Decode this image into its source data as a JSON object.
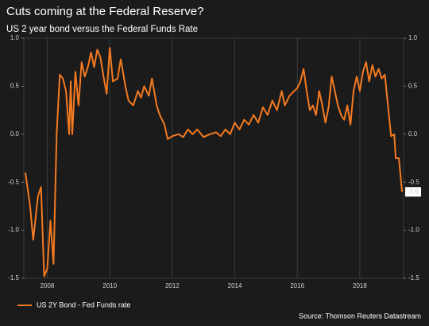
{
  "chart_data": {
    "type": "line",
    "title": "Cuts coming at the Federal Reserve?",
    "subtitle": "US 2 year bond versus the Federal Funds Rate",
    "source": "Source: Thomson Reuters Datastream",
    "xlim": [
      2007.25,
      2019.4
    ],
    "xticks": [
      2008,
      2010,
      2012,
      2014,
      2016,
      2018
    ],
    "ylim": [
      -1.5,
      1.0
    ],
    "yticks": [
      {
        "value": 1.0,
        "label": "1.0"
      },
      {
        "value": 0.5,
        "label": "0.5"
      },
      {
        "value": 0.0,
        "label": "0.0"
      },
      {
        "value": -0.5,
        "label": "-0.5"
      },
      {
        "value": -1.0,
        "label": "-1.0"
      },
      {
        "value": -1.5,
        "label": "-1.5"
      }
    ],
    "grid": true,
    "x": [
      2007.3,
      2007.45,
      2007.55,
      2007.7,
      2007.8,
      2007.9,
      2008.0,
      2008.1,
      2008.2,
      2008.3,
      2008.4,
      2008.5,
      2008.6,
      2008.7,
      2008.75,
      2008.8,
      2008.9,
      2009.0,
      2009.1,
      2009.2,
      2009.3,
      2009.4,
      2009.5,
      2009.6,
      2009.7,
      2009.8,
      2009.9,
      2010.0,
      2010.1,
      2010.25,
      2010.35,
      2010.5,
      2010.6,
      2010.75,
      2010.9,
      2011.0,
      2011.1,
      2011.25,
      2011.35,
      2011.5,
      2011.6,
      2011.75,
      2011.85,
      2012.0,
      2012.2,
      2012.35,
      2012.5,
      2012.65,
      2012.8,
      2013.0,
      2013.2,
      2013.4,
      2013.55,
      2013.7,
      2013.85,
      2014.0,
      2014.15,
      2014.3,
      2014.45,
      2014.6,
      2014.75,
      2014.9,
      2015.05,
      2015.2,
      2015.35,
      2015.5,
      2015.6,
      2015.75,
      2015.9,
      2016.0,
      2016.1,
      2016.2,
      2016.3,
      2016.4,
      2016.5,
      2016.6,
      2016.7,
      2016.8,
      2016.9,
      2017.0,
      2017.1,
      2017.2,
      2017.3,
      2017.4,
      2017.5,
      2017.6,
      2017.7,
      2017.8,
      2017.9,
      2018.0,
      2018.1,
      2018.2,
      2018.3,
      2018.4,
      2018.5,
      2018.6,
      2018.7,
      2018.8,
      2018.9,
      2019.0,
      2019.1,
      2019.15,
      2019.25,
      2019.35
    ],
    "series": [
      {
        "name": "US 2Y Bond - Fed Funds rate",
        "color": "#f47a20",
        "values": [
          -0.4,
          -0.75,
          -1.1,
          -0.65,
          -0.55,
          -1.48,
          -1.4,
          -0.9,
          -1.35,
          0.0,
          0.62,
          0.58,
          0.45,
          0.0,
          0.55,
          0.0,
          0.65,
          0.3,
          0.75,
          0.6,
          0.7,
          0.85,
          0.7,
          0.88,
          0.8,
          0.6,
          0.42,
          0.9,
          0.55,
          0.58,
          0.78,
          0.5,
          0.35,
          0.3,
          0.45,
          0.38,
          0.5,
          0.4,
          0.58,
          0.3,
          0.2,
          0.1,
          -0.05,
          -0.02,
          0.0,
          -0.03,
          0.05,
          0.0,
          0.05,
          -0.03,
          0.0,
          0.02,
          -0.02,
          0.05,
          0.0,
          0.12,
          0.05,
          0.15,
          0.1,
          0.2,
          0.12,
          0.28,
          0.2,
          0.35,
          0.25,
          0.45,
          0.3,
          0.4,
          0.45,
          0.48,
          0.55,
          0.68,
          0.45,
          0.25,
          0.3,
          0.2,
          0.45,
          0.3,
          0.12,
          0.28,
          0.6,
          0.45,
          0.3,
          0.2,
          0.15,
          0.3,
          0.1,
          0.45,
          0.6,
          0.45,
          0.65,
          0.75,
          0.55,
          0.72,
          0.6,
          0.68,
          0.58,
          0.62,
          0.3,
          -0.02,
          0.0,
          -0.25,
          -0.25,
          -0.6
        ]
      }
    ]
  }
}
